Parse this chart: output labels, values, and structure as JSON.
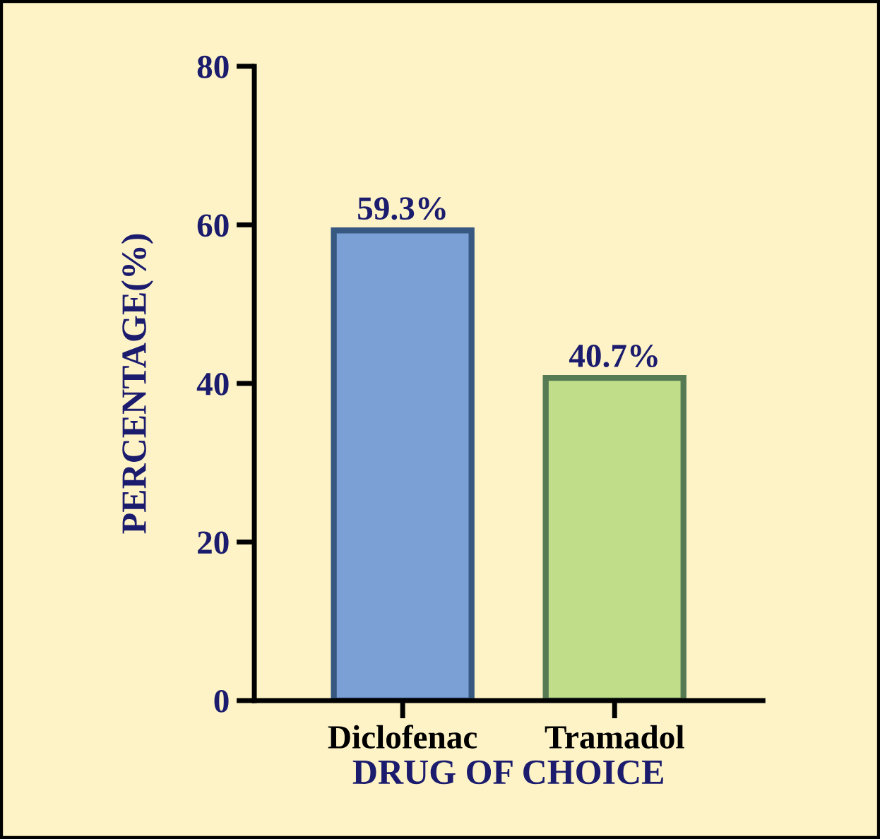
{
  "chart_data": {
    "type": "bar",
    "xlabel": "DRUG OF CHOICE",
    "ylabel": "PERCENTAGE(%)",
    "categories": [
      "Diclofenac",
      "Tramadol"
    ],
    "values": [
      59.3,
      40.7
    ],
    "colors": [
      "#7ba0d6",
      "#c0de8a"
    ],
    "value_labels": [
      "59.3%",
      "40.7%"
    ],
    "ylim": [
      0,
      80
    ],
    "yticks": [
      0,
      20,
      40,
      60,
      80
    ],
    "grid": false,
    "legend": false
  }
}
